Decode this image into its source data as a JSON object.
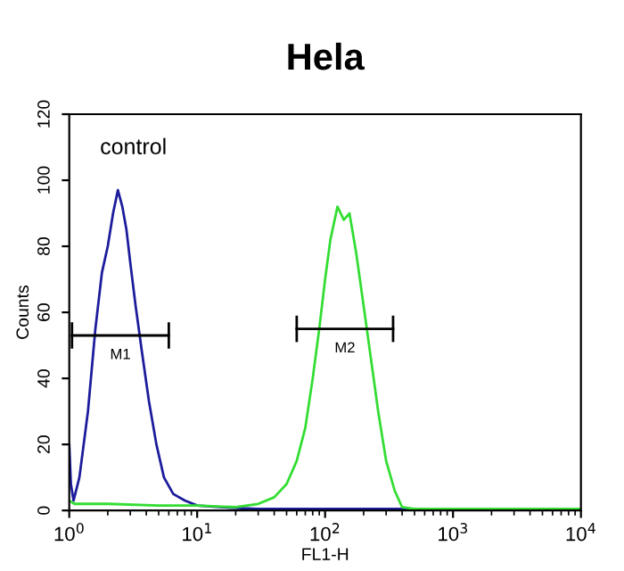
{
  "chart_data": {
    "type": "line",
    "title": "Hela",
    "xlabel": "FL1-H",
    "ylabel": "Counts",
    "log": "x",
    "grid": false,
    "xlim": [
      1,
      10000
    ],
    "ylim": [
      0,
      120
    ],
    "xticks": [
      {
        "value": 1,
        "label": "10$^{0}$"
      },
      {
        "value": 10,
        "label": "10$^{1}$"
      },
      {
        "value": 100,
        "label": "10$^{2}$"
      },
      {
        "value": 1000,
        "label": "10$^{3}$"
      },
      {
        "value": 10000,
        "label": "10$^{4}$"
      }
    ],
    "yticks": [
      0,
      20,
      40,
      60,
      80,
      100,
      120
    ],
    "annotations": [
      "control",
      "M1",
      "M2"
    ],
    "series": [
      {
        "color": "#1c1c9c",
        "x": [
          1.0,
          1.03,
          1.08,
          1.2,
          1.4,
          1.6,
          1.8,
          2.0,
          2.2,
          2.4,
          2.6,
          2.8,
          3.0,
          3.3,
          3.7,
          4.2,
          4.8,
          5.5,
          6.5,
          8,
          10,
          15,
          30,
          100,
          1000,
          10000
        ],
        "values": [
          20,
          8,
          3,
          10,
          30,
          55,
          72,
          80,
          90,
          97,
          92,
          85,
          75,
          62,
          48,
          33,
          20,
          10,
          5,
          3,
          1.5,
          1,
          0.5,
          0.5,
          0.5,
          0.5
        ]
      },
      {
        "color": "#33dd33",
        "x": [
          1.0,
          1.1,
          2,
          5,
          10,
          20,
          30,
          40,
          50,
          60,
          70,
          80,
          90,
          100,
          110,
          125,
          140,
          155,
          175,
          200,
          230,
          260,
          300,
          350,
          400,
          500,
          1000,
          10000
        ],
        "values": [
          3,
          2,
          2,
          1.5,
          1.5,
          1,
          2,
          4,
          8,
          15,
          25,
          40,
          55,
          70,
          82,
          92,
          88,
          90,
          78,
          62,
          45,
          30,
          15,
          6,
          1,
          0.5,
          0.5,
          0.5
        ]
      },
      {
        "color": "#000000",
        "x": [
          1.05,
          6
        ],
        "values": [
          53,
          53
        ],
        "errors": [
          4,
          4
        ]
      },
      {
        "color": "#000000",
        "x": [
          60,
          340
        ],
        "values": [
          55,
          55
        ],
        "errors": [
          4,
          4
        ]
      }
    ]
  }
}
